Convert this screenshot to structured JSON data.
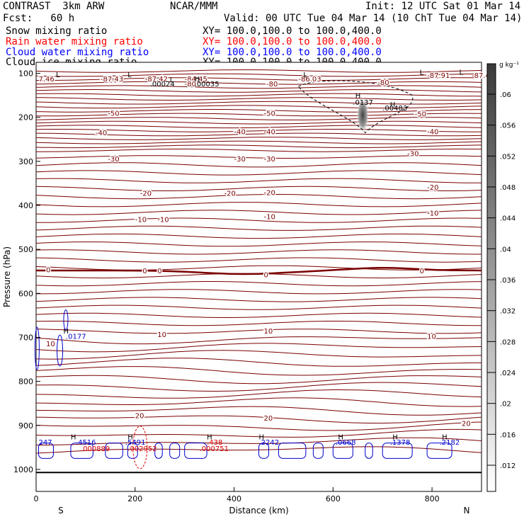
{
  "header": {
    "model": "CONTRAST  3km ARW",
    "org": "NCAR/MMM",
    "init": "Init: 12 UTC Sat 01 Mar 14",
    "fcst": "Fcst:   60 h",
    "valid": "Valid: 00 UTC Tue 04 Mar 14 (10 ChT Tue 04 Mar 14)",
    "fields": [
      {
        "label": "Snow mixing ratio",
        "xy": "XY= 100.0,100.0 to 100.0,400.0",
        "color": "#000000"
      },
      {
        "label": "Rain water mixing ratio",
        "xy": "XY= 100.0,100.0 to 100.0,400.0",
        "color": "#ff0000"
      },
      {
        "label": "Cloud water mixing ratio",
        "xy": "XY= 100.0,100.0 to 100.0,400.0",
        "color": "#0000ff"
      },
      {
        "label": "Cloud ice mixing ratio",
        "xy": "XY= 100.0,100.0 to 100.0,400.0",
        "color": "#000000"
      }
    ]
  },
  "chart_data": {
    "type": "contour",
    "xlabel": "Distance (km)",
    "ylabel": "Pressure (hPa)",
    "xlim": [
      0,
      900
    ],
    "ylim": [
      1050,
      75
    ],
    "xticks": [
      "0",
      "200",
      "400",
      "600",
      "800"
    ],
    "yticks": [
      "100",
      "200",
      "300",
      "400",
      "500",
      "600",
      "700",
      "800",
      "900",
      "1000"
    ],
    "end_labels": {
      "left": "S",
      "right": "N"
    },
    "colorbar": {
      "unit": "g kg⁻¹",
      "ticks": [
        ".06",
        ".056",
        ".052",
        ".048",
        ".044",
        ".04",
        ".036",
        ".032",
        ".028",
        ".024",
        ".02",
        ".016",
        ".012"
      ]
    },
    "temperature_contour_labels": [
      {
        "text": "7.46",
        "x": 5,
        "p": 112
      },
      {
        "text": "-87.43",
        "x": 130,
        "p": 112
      },
      {
        "text": "-87.42",
        "x": 220,
        "p": 112
      },
      {
        "text": "-84.45",
        "x": 300,
        "p": 112
      },
      {
        "text": "-86.03",
        "x": 530,
        "p": 112
      },
      {
        "text": "-87.91",
        "x": 790,
        "p": 104
      },
      {
        "text": "-87.45",
        "x": 880,
        "p": 104
      },
      {
        "text": "-80",
        "x": 300,
        "p": 123
      },
      {
        "text": "-80",
        "x": 465,
        "p": 123
      },
      {
        "text": "-80",
        "x": 690,
        "p": 120
      },
      {
        "text": "-50",
        "x": 145,
        "p": 190
      },
      {
        "text": "-50",
        "x": 460,
        "p": 190
      },
      {
        "text": "-50",
        "x": 765,
        "p": 192
      },
      {
        "text": "-40",
        "x": 120,
        "p": 234
      },
      {
        "text": "-40",
        "x": 400,
        "p": 232
      },
      {
        "text": "-40",
        "x": 460,
        "p": 232
      },
      {
        "text": "-40",
        "x": 790,
        "p": 232
      },
      {
        "text": "-30",
        "x": 145,
        "p": 294
      },
      {
        "text": "-30",
        "x": 400,
        "p": 294
      },
      {
        "text": "-30",
        "x": 460,
        "p": 294
      },
      {
        "text": "-30",
        "x": 750,
        "p": 282
      },
      {
        "text": "-20",
        "x": 210,
        "p": 372
      },
      {
        "text": "-20",
        "x": 380,
        "p": 372
      },
      {
        "text": "-20",
        "x": 460,
        "p": 370
      },
      {
        "text": "-20",
        "x": 790,
        "p": 358
      },
      {
        "text": "-10",
        "x": 200,
        "p": 431
      },
      {
        "text": "-10",
        "x": 245,
        "p": 431
      },
      {
        "text": "-10",
        "x": 460,
        "p": 425
      },
      {
        "text": "-10",
        "x": 790,
        "p": 417
      },
      {
        "text": "0",
        "x": 20,
        "p": 546
      },
      {
        "text": "0",
        "x": 215,
        "p": 548
      },
      {
        "text": "0",
        "x": 245,
        "p": 548
      },
      {
        "text": "0",
        "x": 460,
        "p": 557
      },
      {
        "text": "0",
        "x": 775,
        "p": 548
      },
      {
        "text": "10",
        "x": 20,
        "p": 714
      },
      {
        "text": "10",
        "x": 245,
        "p": 693
      },
      {
        "text": "10",
        "x": 460,
        "p": 685
      },
      {
        "text": "10",
        "x": 790,
        "p": 697
      },
      {
        "text": "20",
        "x": 200,
        "p": 877
      },
      {
        "text": "20",
        "x": 460,
        "p": 883
      },
      {
        "text": "20",
        "x": 860,
        "p": 895
      }
    ],
    "cloud_water_maxima": [
      {
        "text": ".0177",
        "x": 60,
        "p": 697
      },
      {
        "text": "247",
        "x": 5,
        "p": 937
      },
      {
        "text": ".4516",
        "x": 80,
        "p": 937
      },
      {
        "text": ".5491",
        "x": 180,
        "p": 937
      },
      {
        "text": ".2242",
        "x": 450,
        "p": 937
      },
      {
        "text": ".0668",
        "x": 605,
        "p": 937
      },
      {
        "text": ".1378",
        "x": 715,
        "p": 937
      },
      {
        "text": ".2182",
        "x": 815,
        "p": 937
      }
    ],
    "rain_maxima": [
      {
        "text": ".000889",
        "x": 90,
        "p": 952
      },
      {
        "text": ".002952",
        "x": 185,
        "p": 952
      },
      {
        "text": ".438",
        "x": 345,
        "p": 937
      },
      {
        "text": ".000751",
        "x": 330,
        "p": 952
      }
    ],
    "ice_maxima": [
      {
        "text": ".00024",
        "x": 230,
        "p": 123
      },
      {
        "text": ".00035",
        "x": 320,
        "p": 123
      },
      {
        "text": ".0137",
        "x": 640,
        "p": 165
      },
      {
        "text": ".00483",
        "x": 700,
        "p": 178
      }
    ],
    "extremum_marks": [
      {
        "text": "L",
        "x": 40,
        "p": 102
      },
      {
        "text": "L",
        "x": 185,
        "p": 102
      },
      {
        "text": "L",
        "x": 270,
        "p": 114
      },
      {
        "text": "L",
        "x": 540,
        "p": 102
      },
      {
        "text": "L",
        "x": 775,
        "p": 97
      },
      {
        "text": "L",
        "x": 855,
        "p": 97
      },
      {
        "text": "H",
        "x": 320,
        "p": 112
      },
      {
        "text": "H",
        "x": 645,
        "p": 150
      },
      {
        "text": "H",
        "x": 715,
        "p": 170
      },
      {
        "text": "H",
        "x": 55,
        "p": 685
      },
      {
        "text": "H",
        "x": 70,
        "p": 925
      },
      {
        "text": "H",
        "x": 185,
        "p": 925
      },
      {
        "text": "H",
        "x": 345,
        "p": 925
      },
      {
        "text": "H",
        "x": 450,
        "p": 925
      },
      {
        "text": "H",
        "x": 610,
        "p": 925
      },
      {
        "text": "H",
        "x": 720,
        "p": 925
      },
      {
        "text": "H",
        "x": 820,
        "p": 925
      }
    ]
  }
}
